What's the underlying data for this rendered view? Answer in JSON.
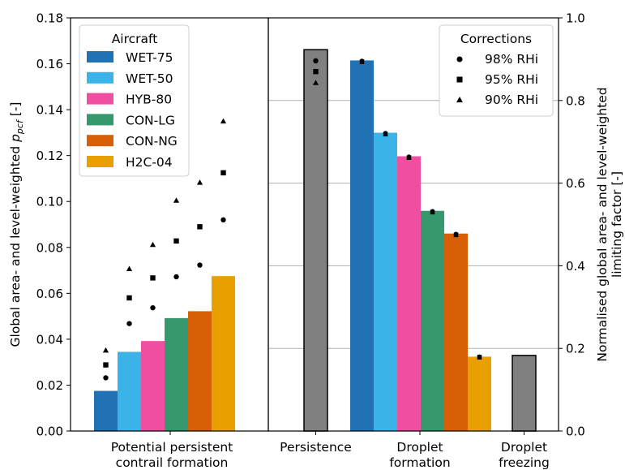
{
  "chart_data": {
    "type": "bar",
    "left_panel": {
      "ylabel_parts": [
        "Global area- and level-weighted ",
        "p",
        "pcf",
        " [-]"
      ],
      "ylim": [
        0,
        0.18
      ],
      "yticks": [
        "0.00",
        "0.02",
        "0.04",
        "0.06",
        "0.08",
        "0.10",
        "0.12",
        "0.14",
        "0.16",
        "0.18"
      ],
      "xtick_label": [
        "Potential persistent",
        "contrail formation"
      ],
      "series": [
        {
          "name": "WET-75",
          "color": "#2171b5",
          "value": 0.0175,
          "markers": {
            "98": 0.0232,
            "95": 0.0288,
            "90": 0.0352
          }
        },
        {
          "name": "WET-50",
          "color": "#3cb3e8",
          "value": 0.0345,
          "markers": {
            "98": 0.0468,
            "95": 0.058,
            "90": 0.0707
          }
        },
        {
          "name": "HYB-80",
          "color": "#f04ea0",
          "value": 0.0392,
          "markers": {
            "98": 0.0537,
            "95": 0.0667,
            "90": 0.0812
          }
        },
        {
          "name": "CON-LG",
          "color": "#36996e",
          "value": 0.0492,
          "markers": {
            "98": 0.0672,
            "95": 0.0828,
            "90": 0.1005
          }
        },
        {
          "name": "CON-NG",
          "color": "#d95f06",
          "value": 0.0522,
          "markers": {
            "98": 0.0723,
            "95": 0.089,
            "90": 0.1083
          }
        },
        {
          "name": "H2C-04",
          "color": "#e8a000",
          "value": 0.0675,
          "markers": {
            "98": 0.092,
            "95": 0.1125,
            "90": 0.135
          }
        }
      ]
    },
    "right_panel": {
      "ylabel": [
        "Normalised global area- and level-weighted",
        "limiting factor [-]"
      ],
      "ylim": [
        0,
        1.0
      ],
      "yticks": [
        "0.0",
        "0.2",
        "0.4",
        "0.6",
        "0.8",
        "1.0"
      ],
      "grid": true,
      "categories": [
        [
          "Persistence"
        ],
        [
          "Droplet",
          "formation"
        ],
        [
          "Droplet",
          "freezing"
        ]
      ],
      "persistence": {
        "value": 0.923,
        "color": "#808080",
        "markers": {
          "98": 0.896,
          "95": 0.87,
          "90": 0.843
        }
      },
      "droplet_formation": [
        {
          "name": "WET-75",
          "value": 0.897,
          "markers": {
            "98": 0.896,
            "95": 0.894,
            "90": 0.893
          }
        },
        {
          "name": "WET-50",
          "value": 0.722,
          "markers": {
            "98": 0.721,
            "95": 0.719,
            "90": 0.718
          }
        },
        {
          "name": "HYB-80",
          "value": 0.665,
          "markers": {
            "98": 0.664,
            "95": 0.662,
            "90": 0.661
          }
        },
        {
          "name": "CON-LG",
          "value": 0.533,
          "markers": {
            "98": 0.532,
            "95": 0.53,
            "90": 0.529
          }
        },
        {
          "name": "CON-NG",
          "value": 0.478,
          "markers": {
            "98": 0.477,
            "95": 0.475,
            "90": 0.474
          }
        },
        {
          "name": "H2C-04",
          "value": 0.18,
          "markers": {
            "98": 0.18,
            "95": 0.179,
            "90": 0.178
          }
        }
      ],
      "droplet_freezing": {
        "value": 0.183,
        "color": "#808080"
      }
    },
    "legend_aircraft": {
      "title": "Aircraft",
      "placement": "top-left"
    },
    "legend_corrections": {
      "title": "Corrections",
      "placement": "top-right",
      "entries": [
        {
          "label": "98% RHi",
          "marker": "circle"
        },
        {
          "label": "95% RHi",
          "marker": "square"
        },
        {
          "label": "90% RHi",
          "marker": "triangle"
        }
      ]
    }
  }
}
